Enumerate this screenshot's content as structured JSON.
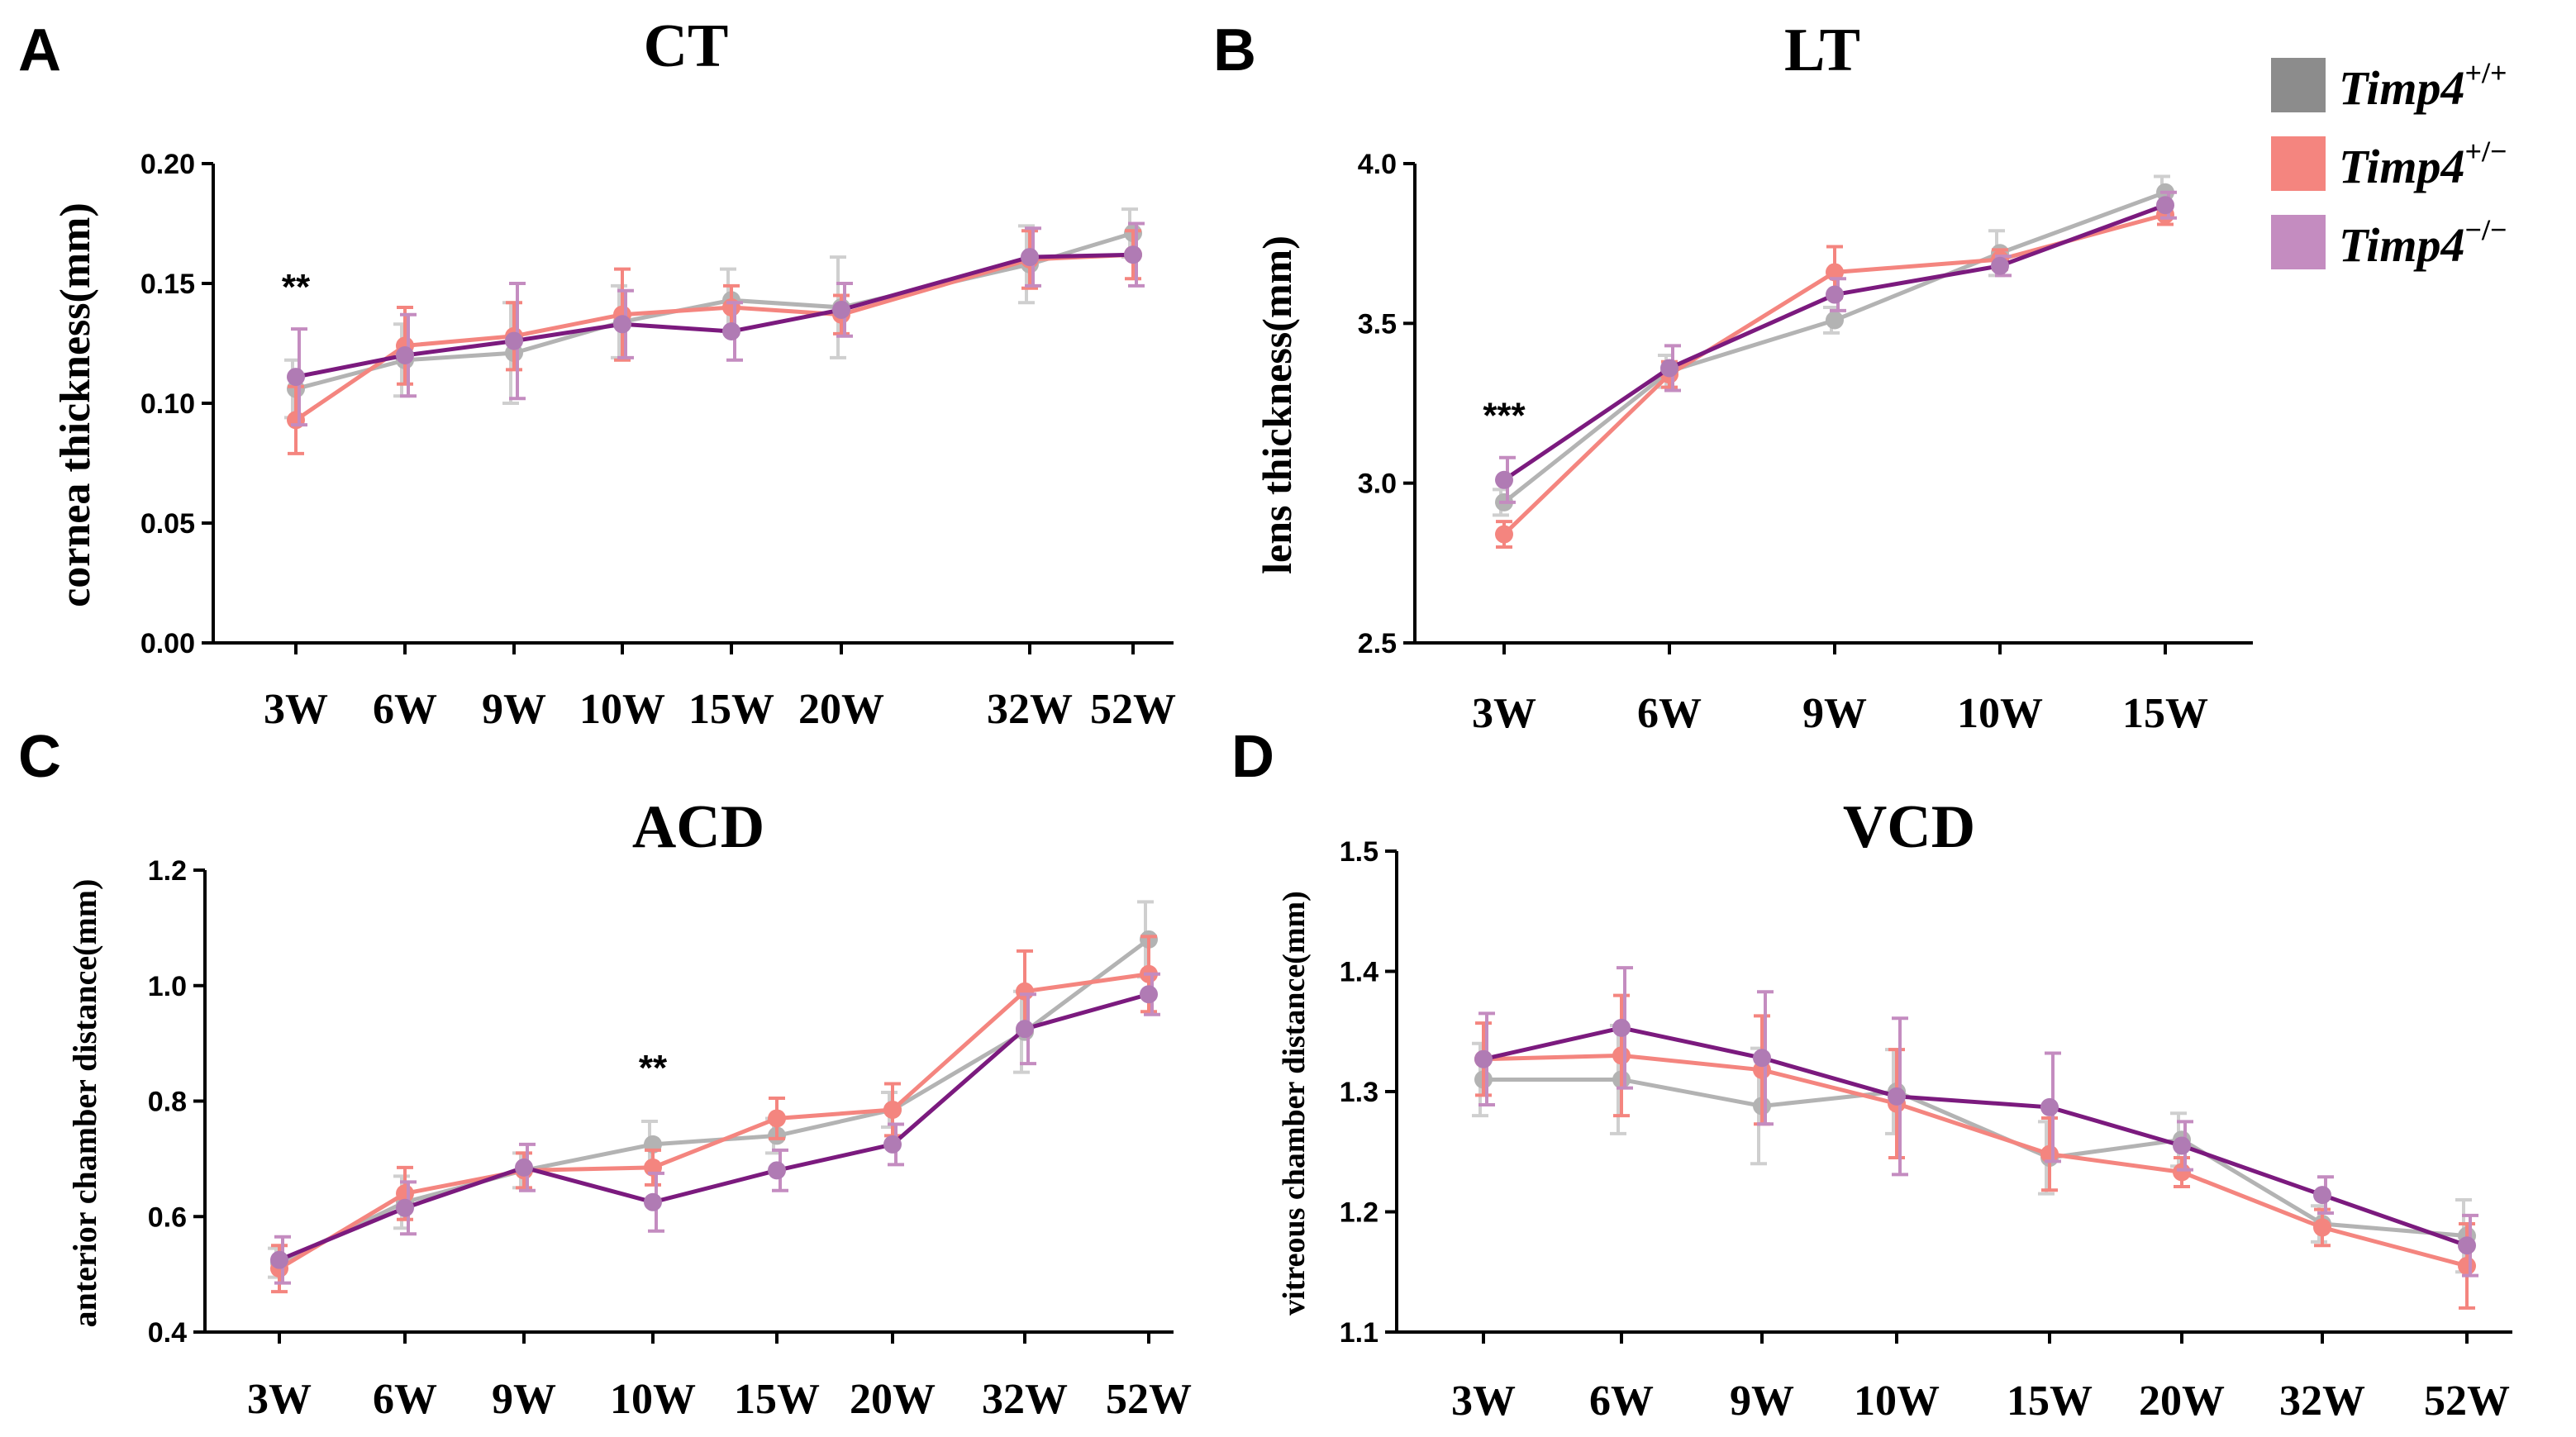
{
  "legend": {
    "entries": [
      {
        "name": "Timp4",
        "sup": "+/+",
        "color": "#8c8c8c"
      },
      {
        "name": "Timp4",
        "sup": "+/−",
        "color": "#f4857f"
      },
      {
        "name": "Timp4",
        "sup": "−/−",
        "color": "#c48cc0"
      }
    ]
  },
  "chart_data": [
    {
      "panel": "A",
      "type": "line",
      "title": "CT",
      "ylabel": "cornea thickness(mm)",
      "categories": [
        "3W",
        "6W",
        "9W",
        "10W",
        "15W",
        "20W",
        "32W",
        "52W"
      ],
      "ylim": [
        0.0,
        0.2
      ],
      "yticks": [
        "0.00",
        "0.05",
        "0.10",
        "0.15",
        "0.20"
      ],
      "series": [
        {
          "name": "Timp4+/+",
          "values": [
            0.106,
            0.118,
            0.121,
            0.134,
            0.143,
            0.14,
            0.158,
            0.171
          ],
          "errors": [
            0.012,
            0.015,
            0.021,
            0.015,
            0.013,
            0.021,
            0.016,
            0.01
          ]
        },
        {
          "name": "Timp4+/−",
          "values": [
            0.093,
            0.124,
            0.128,
            0.137,
            0.14,
            0.137,
            0.16,
            0.162
          ],
          "errors": [
            0.014,
            0.016,
            0.014,
            0.019,
            0.009,
            0.008,
            0.012,
            0.01
          ]
        },
        {
          "name": "Timp4−/−",
          "values": [
            0.111,
            0.12,
            0.126,
            0.133,
            0.13,
            0.139,
            0.161,
            0.162
          ],
          "errors": [
            0.02,
            0.017,
            0.024,
            0.014,
            0.012,
            0.011,
            0.012,
            0.013
          ]
        }
      ],
      "annotations": [
        {
          "text": "**",
          "category": "3W"
        }
      ]
    },
    {
      "panel": "B",
      "type": "line",
      "title": "LT",
      "ylabel": "lens thickness(mm)",
      "categories": [
        "3W",
        "6W",
        "9W",
        "10W",
        "15W"
      ],
      "ylim": [
        2.5,
        4.0
      ],
      "yticks": [
        "2.5",
        "3.0",
        "3.5",
        "4.0"
      ],
      "series": [
        {
          "name": "Timp4+/+",
          "values": [
            2.94,
            3.35,
            3.51,
            3.72,
            3.91
          ],
          "errors": [
            0.04,
            0.05,
            0.04,
            0.07,
            0.05
          ]
        },
        {
          "name": "Timp4+/−",
          "values": [
            2.84,
            3.34,
            3.66,
            3.7,
            3.84
          ],
          "errors": [
            0.04,
            0.04,
            0.08,
            0.03,
            0.03
          ]
        },
        {
          "name": "Timp4−/−",
          "values": [
            3.01,
            3.36,
            3.59,
            3.68,
            3.87
          ],
          "errors": [
            0.07,
            0.07,
            0.05,
            0.03,
            0.04
          ]
        }
      ],
      "annotations": [
        {
          "text": "***",
          "category": "3W"
        }
      ]
    },
    {
      "panel": "C",
      "type": "line",
      "title": "ACD",
      "ylabel": "anterior chamber distance(mm)",
      "categories": [
        "3W",
        "6W",
        "9W",
        "10W",
        "15W",
        "20W",
        "32W",
        "52W"
      ],
      "ylim": [
        0.4,
        1.2
      ],
      "yticks": [
        "0.4",
        "0.6",
        "0.8",
        "1.0",
        "1.2"
      ],
      "series": [
        {
          "name": "Timp4+/+",
          "values": [
            0.52,
            0.625,
            0.68,
            0.725,
            0.74,
            0.785,
            0.92,
            1.08
          ],
          "errors": [
            0.025,
            0.045,
            0.03,
            0.04,
            0.03,
            0.03,
            0.07,
            0.065
          ]
        },
        {
          "name": "Timp4+/−",
          "values": [
            0.51,
            0.64,
            0.68,
            0.685,
            0.77,
            0.785,
            0.99,
            1.02
          ],
          "errors": [
            0.04,
            0.045,
            0.03,
            0.03,
            0.035,
            0.045,
            0.07,
            0.065
          ]
        },
        {
          "name": "Timp4−/−",
          "values": [
            0.525,
            0.615,
            0.685,
            0.625,
            0.68,
            0.725,
            0.925,
            0.985
          ],
          "errors": [
            0.04,
            0.045,
            0.04,
            0.05,
            0.035,
            0.035,
            0.06,
            0.035
          ]
        }
      ],
      "annotations": [
        {
          "text": "**",
          "category": "10W"
        }
      ]
    },
    {
      "panel": "D",
      "type": "line",
      "title": "VCD",
      "ylabel": "vitreous  chamber distance(mm)",
      "categories": [
        "3W",
        "6W",
        "9W",
        "10W",
        "15W",
        "20W",
        "32W",
        "52W"
      ],
      "ylim": [
        1.1,
        1.5
      ],
      "yticks": [
        "1.1",
        "1.2",
        "1.3",
        "1.4",
        "1.5"
      ],
      "series": [
        {
          "name": "Timp4+/+",
          "values": [
            1.31,
            1.31,
            1.288,
            1.3,
            1.245,
            1.26,
            1.19,
            1.18
          ],
          "errors": [
            0.03,
            0.045,
            0.048,
            0.035,
            0.03,
            0.022,
            0.015,
            0.03
          ]
        },
        {
          "name": "Timp4+/−",
          "values": [
            1.327,
            1.33,
            1.318,
            1.29,
            1.248,
            1.233,
            1.187,
            1.155
          ],
          "errors": [
            0.03,
            0.05,
            0.045,
            0.045,
            0.03,
            0.012,
            0.015,
            0.035
          ]
        },
        {
          "name": "Timp4−/−",
          "values": [
            1.327,
            1.353,
            1.328,
            1.296,
            1.287,
            1.255,
            1.214,
            1.172
          ],
          "errors": [
            0.038,
            0.05,
            0.055,
            0.065,
            0.045,
            0.02,
            0.015,
            0.025
          ]
        }
      ],
      "annotations": []
    }
  ]
}
